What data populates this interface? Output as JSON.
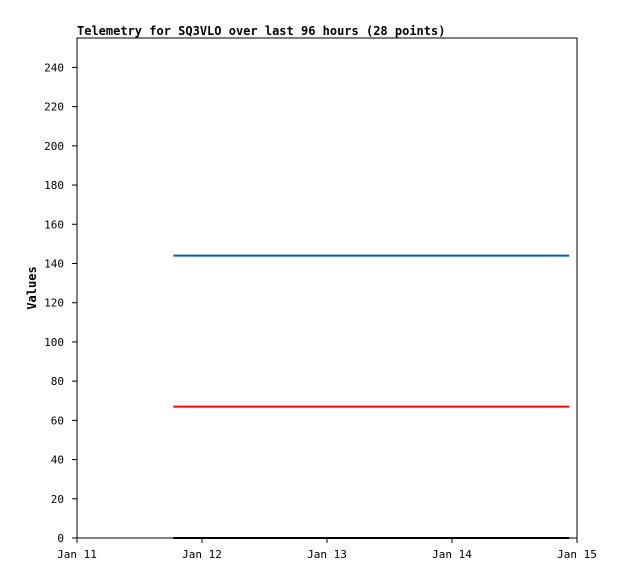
{
  "chart_data": {
    "type": "line",
    "title": "Telemetry for SQ3VLO over last 96 hours (28 points)",
    "xlabel": "",
    "ylabel": "Values",
    "x_ticks": [
      "Jan 11",
      "Jan 12",
      "Jan 13",
      "Jan 14",
      "Jan 15"
    ],
    "xlim": [
      "Jan 11 00:00",
      "Jan 15 00:00"
    ],
    "ylim": [
      0,
      255
    ],
    "y_ticks": [
      0,
      20,
      40,
      60,
      80,
      100,
      120,
      140,
      160,
      180,
      200,
      220,
      240
    ],
    "grid": false,
    "series": [
      {
        "color": "#0060b0",
        "x": [
          "Jan 11 18:30",
          "Jan 14 22:30"
        ],
        "y": [
          144,
          144
        ]
      },
      {
        "color": "#ff0000",
        "x": [
          "Jan 11 18:30",
          "Jan 14 22:30"
        ],
        "y": [
          67,
          67
        ]
      },
      {
        "color": "#000000",
        "x": [
          "Jan 11 18:30",
          "Jan 14 22:30"
        ],
        "y": [
          0,
          0
        ]
      }
    ]
  }
}
